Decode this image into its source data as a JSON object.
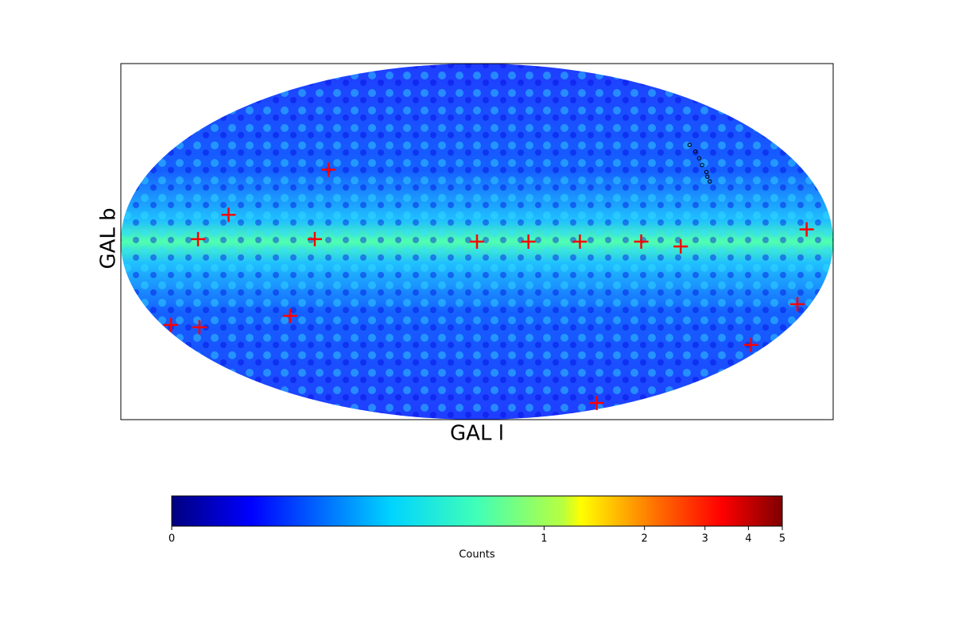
{
  "chart_data": {
    "type": "scatter",
    "projection": "mollweide",
    "xlabel": "GAL l",
    "ylabel": "GAL b",
    "xlim": [
      180,
      -180
    ],
    "ylim": [
      -90,
      90
    ],
    "series": [
      {
        "color": "red",
        "marker": "+",
        "x": [
          141,
          127,
          82,
          82,
          0,
          -26,
          -52,
          -83,
          -103,
          -167,
          -173,
          -170,
          -143,
          104,
          160,
          175
        ],
        "y": [
          1,
          11,
          30,
          1,
          0,
          0,
          0,
          0,
          -2,
          5,
          -26,
          -44,
          -75,
          -31,
          -36,
          -35
        ]
      },
      {
        "color": "black",
        "marker": "o",
        "x": [
          -128,
          -128,
          -127,
          -126,
          -126,
          -125,
          -125
        ],
        "y": [
          41,
          38,
          35,
          32,
          29,
          27,
          25
        ]
      }
    ],
    "colorbar": {
      "label": "Counts",
      "lim": [
        0,
        5
      ],
      "ticks": [
        0,
        1,
        2,
        3,
        4,
        5
      ]
    }
  }
}
